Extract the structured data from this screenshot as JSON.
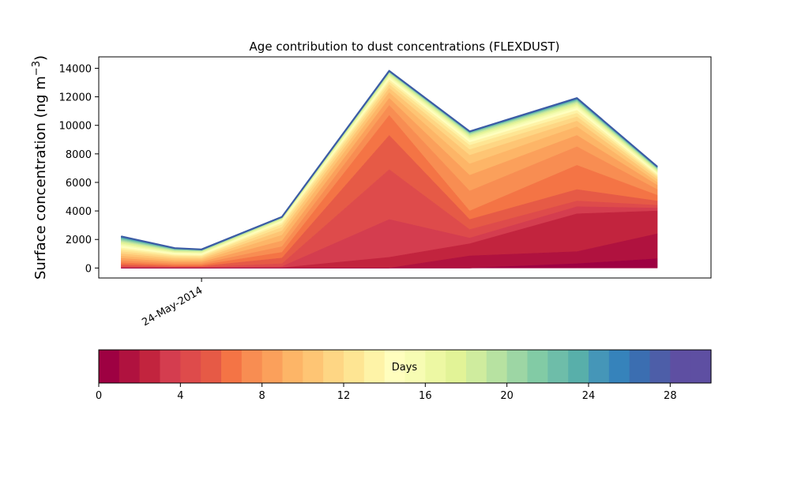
{
  "chart_data": {
    "type": "area",
    "title": "Age contribution to dust concentrations (FLEXDUST)",
    "ylabel_main": "Surface concentration (ng m",
    "ylabel_sup": "−3",
    "ylabel_close": ")",
    "xlabel": "",
    "ylim": [
      -700,
      14800
    ],
    "yticks": [
      0,
      2000,
      4000,
      6000,
      8000,
      10000,
      12000,
      14000
    ],
    "xlim": [
      "2014-05-20 04:00",
      "2014-06-12 00:00"
    ],
    "x": [
      "2014-05-21",
      "2014-05-23",
      "2014-05-24",
      "2014-05-27",
      "2014-05-31",
      "2014-06-03",
      "2014-06-07",
      "2014-06-10"
    ],
    "xtick_labels": [
      {
        "date": "2014-05-24",
        "label": "24-May-2014"
      }
    ],
    "stack_levels": [
      {
        "day": 1,
        "values": [
          0,
          0,
          0,
          0,
          0,
          0,
          300,
          650
        ]
      },
      {
        "day": 2,
        "values": [
          0,
          0,
          0,
          0,
          0,
          850,
          1150,
          2400
        ]
      },
      {
        "day": 3,
        "values": [
          0,
          0,
          0,
          20,
          750,
          1700,
          3800,
          4000
        ]
      },
      {
        "day": 4,
        "values": [
          50,
          20,
          20,
          100,
          3400,
          2100,
          4300,
          4200
        ]
      },
      {
        "day": 5,
        "values": [
          120,
          60,
          60,
          300,
          6900,
          2700,
          4700,
          4400
        ]
      },
      {
        "day": 6,
        "values": [
          230,
          120,
          120,
          700,
          9300,
          3400,
          5500,
          4700
        ]
      },
      {
        "day": 7,
        "values": [
          370,
          200,
          200,
          1100,
          10700,
          4000,
          7200,
          5100
        ]
      },
      {
        "day": 8,
        "values": [
          520,
          300,
          300,
          1500,
          11400,
          5400,
          8500,
          5500
        ]
      },
      {
        "day": 9,
        "values": [
          680,
          420,
          420,
          1900,
          11900,
          6500,
          9300,
          5800
        ]
      },
      {
        "day": 10,
        "values": [
          840,
          540,
          530,
          2300,
          12300,
          7300,
          9900,
          6000
        ]
      },
      {
        "day": 11,
        "values": [
          1000,
          660,
          640,
          2600,
          12600,
          7900,
          10300,
          6200
        ]
      },
      {
        "day": 12,
        "values": [
          1150,
          770,
          740,
          2850,
          12850,
          8300,
          10600,
          6350
        ]
      },
      {
        "day": 13,
        "values": [
          1290,
          860,
          830,
          3050,
          13050,
          8600,
          10850,
          6450
        ]
      },
      {
        "day": 14,
        "values": [
          1410,
          940,
          900,
          3180,
          13200,
          8800,
          11050,
          6550
        ]
      },
      {
        "day": 15,
        "values": [
          1520,
          1010,
          970,
          3270,
          13320,
          8950,
          11200,
          6630
        ]
      },
      {
        "day": 16,
        "values": [
          1620,
          1070,
          1030,
          3340,
          13420,
          9070,
          11330,
          6700
        ]
      },
      {
        "day": 17,
        "values": [
          1710,
          1120,
          1080,
          3390,
          13500,
          9170,
          11430,
          6760
        ]
      },
      {
        "day": 18,
        "values": [
          1790,
          1170,
          1120,
          3430,
          13570,
          9250,
          11520,
          6820
        ]
      },
      {
        "day": 19,
        "values": [
          1860,
          1210,
          1160,
          3460,
          13620,
          9320,
          11590,
          6870
        ]
      },
      {
        "day": 20,
        "values": [
          1920,
          1245,
          1190,
          3490,
          13670,
          9380,
          11650,
          6910
        ]
      },
      {
        "day": 21,
        "values": [
          1980,
          1275,
          1215,
          3510,
          13700,
          9420,
          11700,
          6950
        ]
      },
      {
        "day": 22,
        "values": [
          2030,
          1300,
          1235,
          3530,
          13730,
          9460,
          11740,
          6980
        ]
      },
      {
        "day": 23,
        "values": [
          2070,
          1320,
          1250,
          3545,
          13750,
          9490,
          11780,
          7010
        ]
      },
      {
        "day": 24,
        "values": [
          2110,
          1340,
          1265,
          3555,
          13770,
          9510,
          11810,
          7030
        ]
      },
      {
        "day": 25,
        "values": [
          2140,
          1355,
          1275,
          3565,
          13785,
          9530,
          11840,
          7050
        ]
      },
      {
        "day": 26,
        "values": [
          2170,
          1365,
          1285,
          3572,
          13795,
          9545,
          11860,
          7065
        ]
      },
      {
        "day": 27,
        "values": [
          2190,
          1375,
          1292,
          3578,
          13805,
          9555,
          11880,
          7078
        ]
      },
      {
        "day": 28,
        "values": [
          2205,
          1382,
          1297,
          3582,
          13812,
          9563,
          11895,
          7088
        ]
      },
      {
        "day": 29,
        "values": [
          2215,
          1387,
          1300,
          3585,
          13818,
          9568,
          11905,
          7095
        ]
      },
      {
        "day": 30,
        "values": [
          2220,
          1390,
          1302,
          3587,
          13822,
          9572,
          11912,
          7100
        ]
      }
    ],
    "colormap": [
      "#9e0142",
      "#b0123f",
      "#c2243e",
      "#d43d4f",
      "#de4b4b",
      "#e65a46",
      "#f47445",
      "#f88d52",
      "#fba05b",
      "#fdb567",
      "#fec574",
      "#fed684",
      "#fee593",
      "#fef3a7",
      "#fffebe",
      "#f7fcb3",
      "#edf8a3",
      "#e2f397",
      "#cfec9e",
      "#b7e2a1",
      "#9dd6a4",
      "#82cba5",
      "#6ebda9",
      "#58afaa",
      "#4596b8",
      "#3683bb",
      "#3b6eb1",
      "#4d5ea8",
      "#5e4fa2",
      "#5e4fa2"
    ],
    "outline_color": "#3b5ba5",
    "grid": false,
    "legend": "none",
    "colorbar": {
      "label": "Days",
      "range": [
        0,
        30
      ],
      "ticks": [
        0,
        4,
        8,
        12,
        16,
        20,
        24,
        28
      ],
      "orientation": "horizontal",
      "placement": "bottom"
    }
  }
}
